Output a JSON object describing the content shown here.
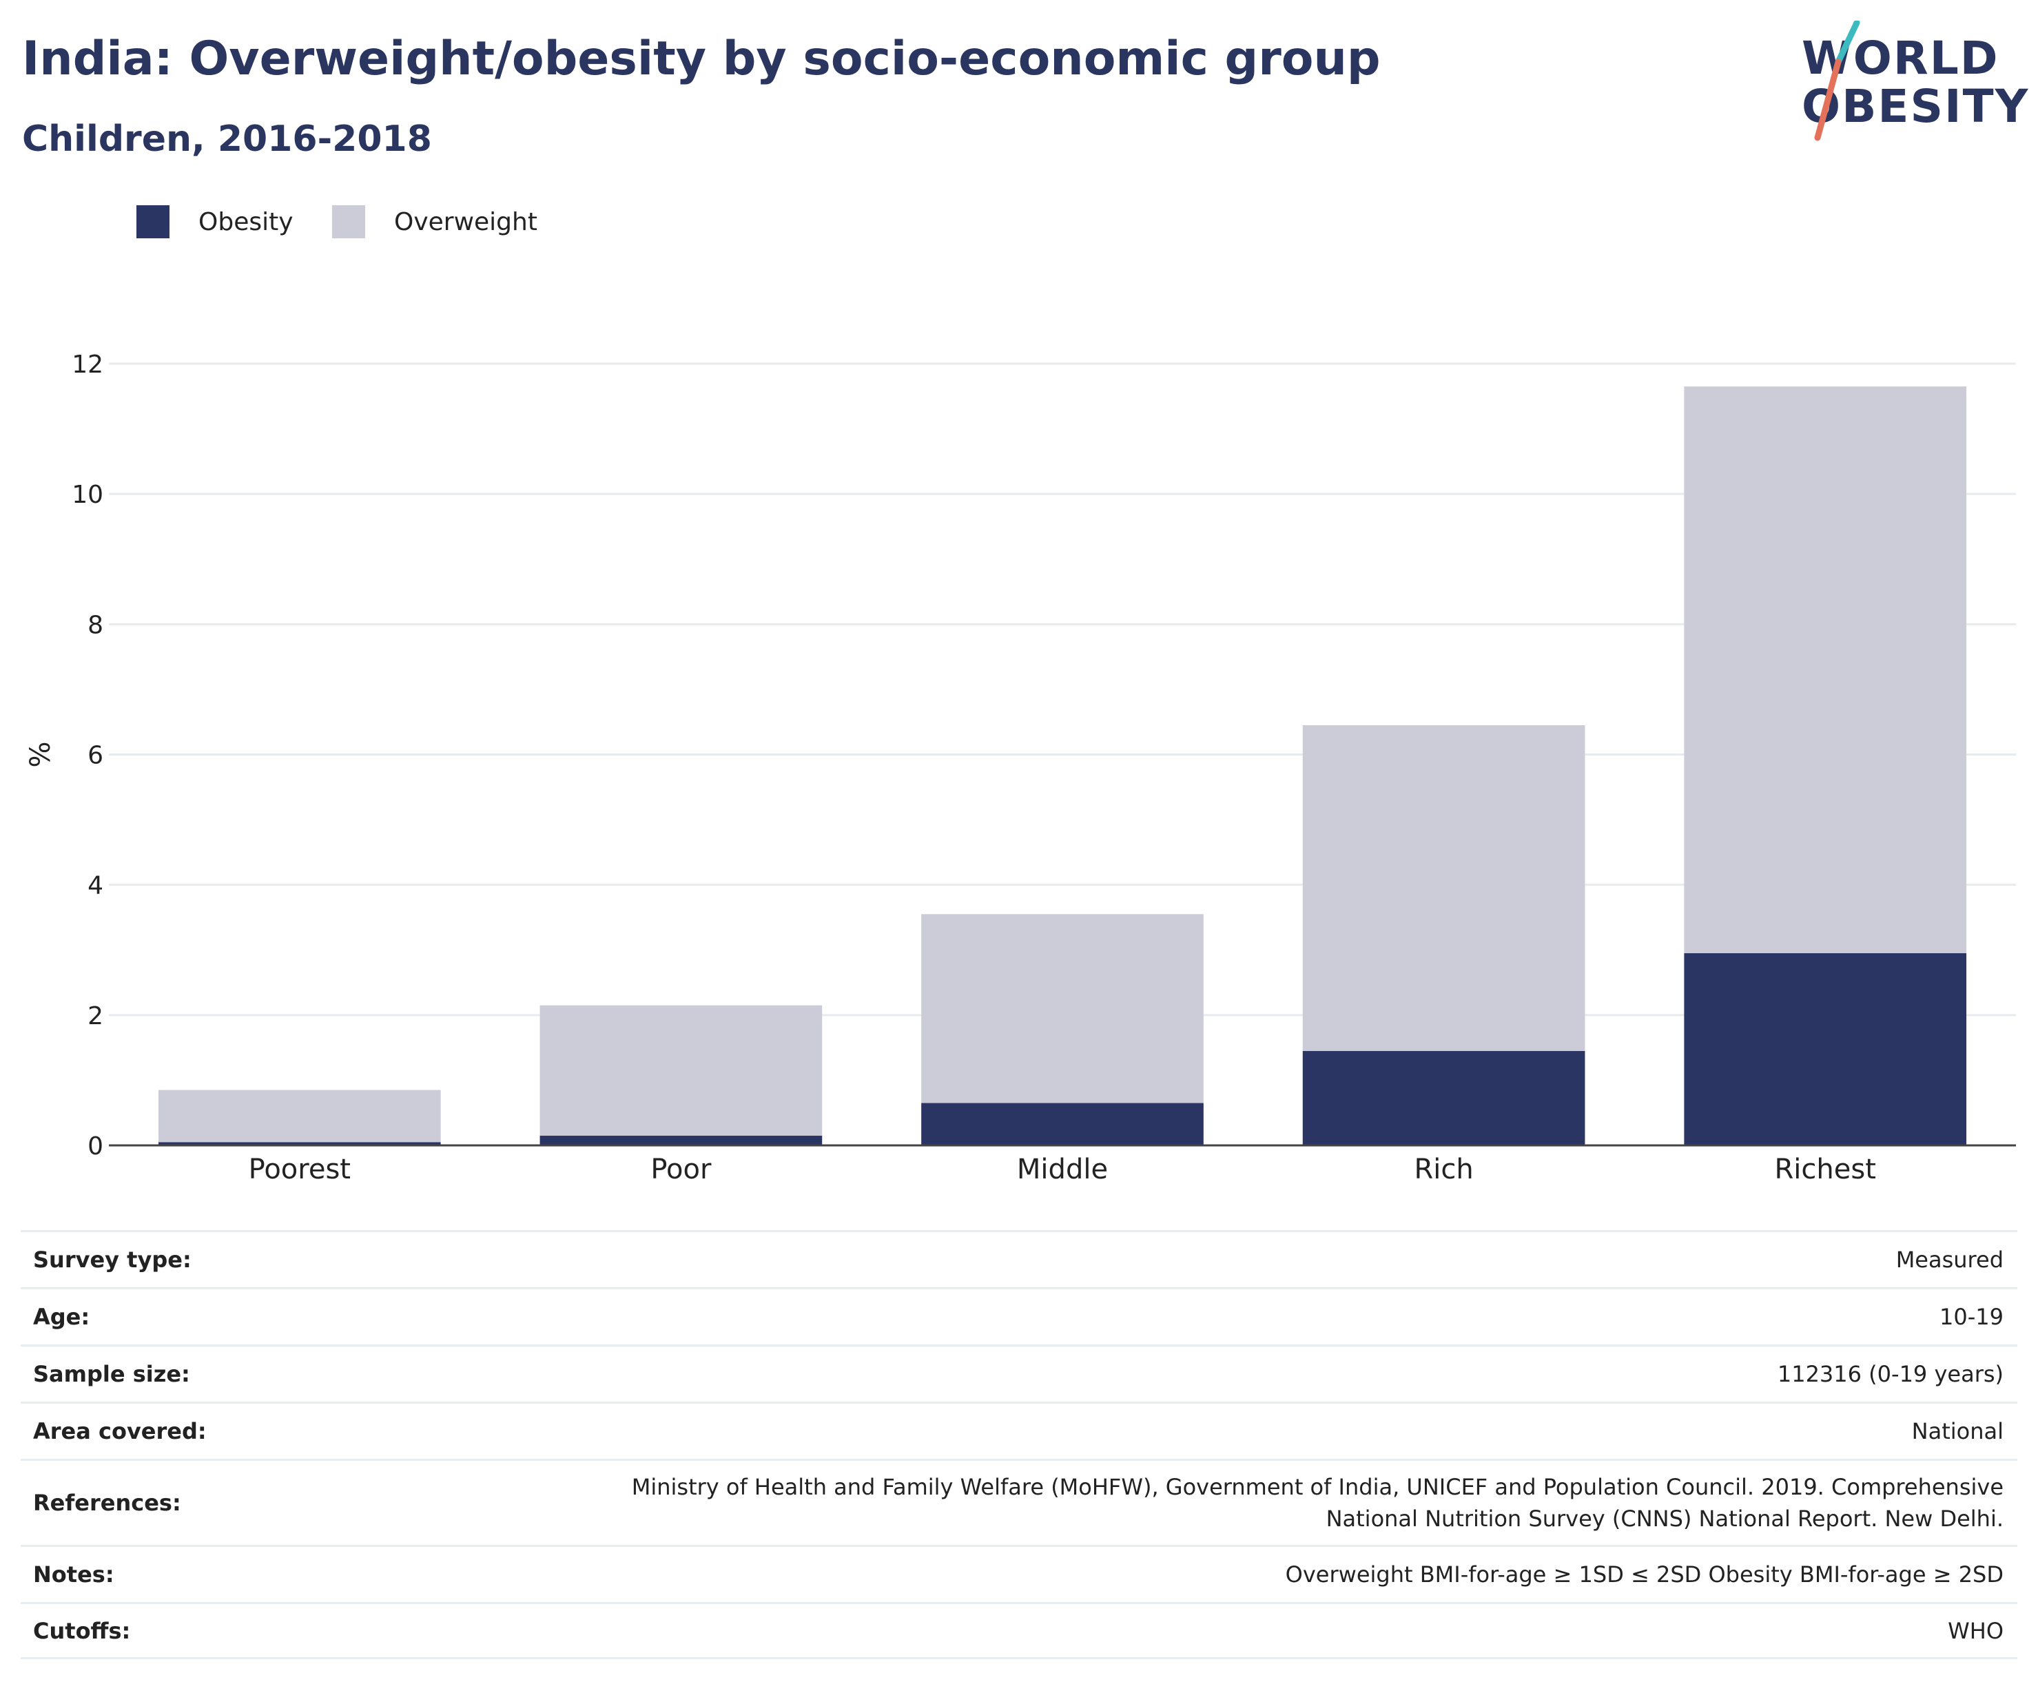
{
  "title": "India: Overweight/obesity by socio-economic group",
  "subtitle": "Children, 2016-2018",
  "logo": {
    "line1": "WORLD",
    "line2": "OBESITY"
  },
  "legend": [
    {
      "label": "Obesity",
      "color": "#2a3563"
    },
    {
      "label": "Overweight",
      "color": "#cbccd8"
    }
  ],
  "chart_data": {
    "type": "bar",
    "stacked": true,
    "categories": [
      "Poorest",
      "Poor",
      "Middle",
      "Rich",
      "Richest"
    ],
    "series": [
      {
        "name": "Obesity",
        "color": "#2a3563",
        "values": [
          0.05,
          0.15,
          0.65,
          1.45,
          2.95
        ]
      },
      {
        "name": "Overweight",
        "color": "#cbccd8",
        "values": [
          0.8,
          2.0,
          2.9,
          5.0,
          8.7
        ]
      }
    ],
    "totals": [
      0.85,
      2.15,
      3.55,
      6.45,
      11.65
    ],
    "ylabel": "%",
    "xlabel": "",
    "ylim": [
      0,
      12
    ],
    "yticks": [
      0,
      2,
      4,
      6,
      8,
      10,
      12
    ],
    "grid": true,
    "legend_position": "top-left"
  },
  "meta": [
    {
      "label": "Survey type:",
      "value": "Measured"
    },
    {
      "label": "Age:",
      "value": "10-19"
    },
    {
      "label": "Sample size:",
      "value": "112316 (0-19 years)"
    },
    {
      "label": "Area covered:",
      "value": "National"
    },
    {
      "label": "References:",
      "value": "Ministry of Health and Family Welfare (MoHFW), Government of India, UNICEF and Population Council. 2019. Comprehensive National Nutrition Survey (CNNS) National Report. New Delhi."
    },
    {
      "label": "Notes:",
      "value": "Overweight BMI-for-age ≥ 1SD ≤ 2SD Obesity BMI-for-age ≥ 2SD"
    },
    {
      "label": "Cutoffs:",
      "value": "WHO"
    }
  ]
}
